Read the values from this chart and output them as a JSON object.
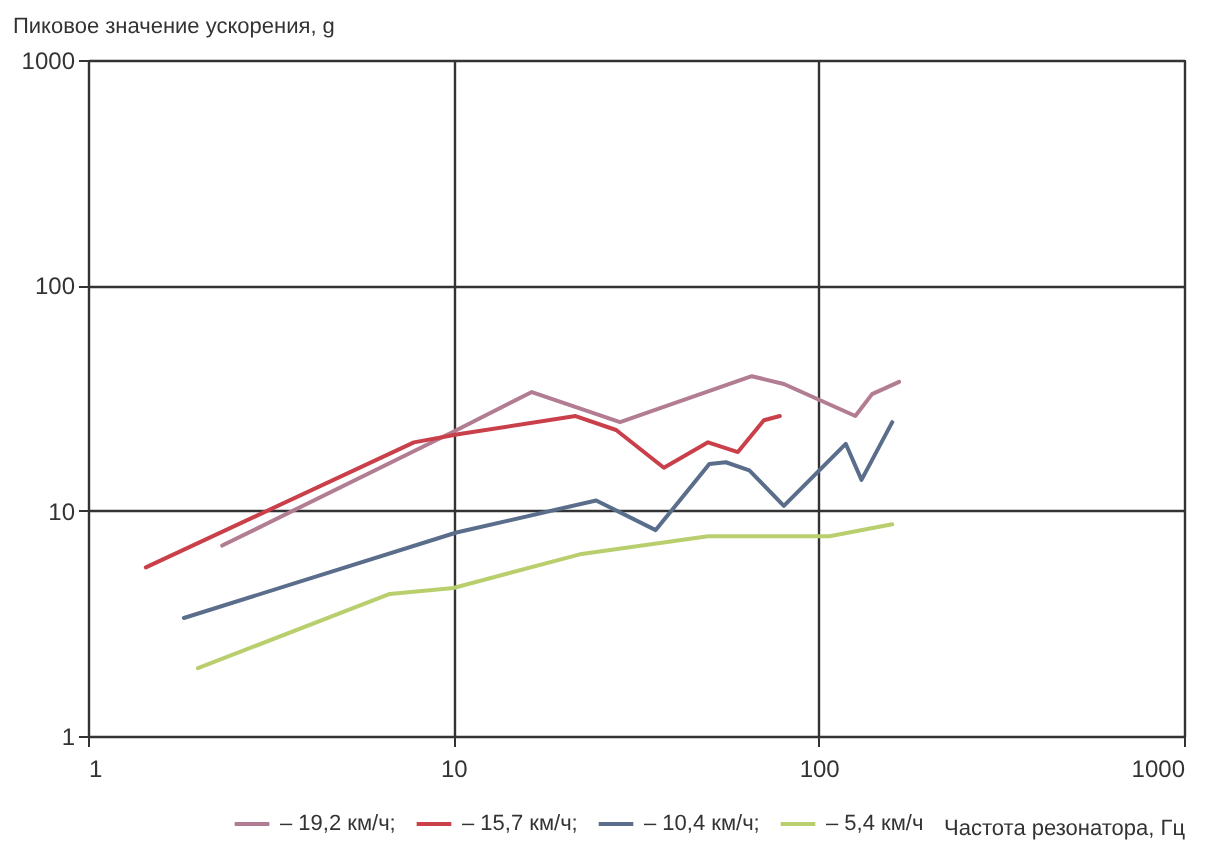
{
  "chart_data": {
    "type": "line",
    "xlabel": "Частота резонатора, Гц",
    "ylabel": "Пиковое значение ускорения, g",
    "log": "xy",
    "xlim": [
      1,
      1000
    ],
    "xticks": [
      1,
      10,
      100,
      1000
    ],
    "ylim": [
      1,
      1000
    ],
    "yticks": [
      1,
      10,
      100,
      1000
    ],
    "grid": true,
    "legend": "bottom",
    "marker": "none",
    "line_style": "solid",
    "series": [
      {
        "name": "– 19,2 км/ч;",
        "color": "#b27d92",
        "x": [
          2.33,
          10,
          16.4,
          28.6,
          65.6,
          80.3,
          126,
          140,
          166
        ],
        "values": [
          7,
          22.4,
          33.6,
          24.7,
          39.5,
          36.5,
          26.3,
          32.9,
          37.3
        ]
      },
      {
        "name": "– 15,7 км/ч;",
        "color": "#c9404a",
        "x": [
          1.44,
          7.8,
          10.4,
          21.6,
          27.9,
          37.7,
          49.8,
          60.1,
          70.8,
          78.3
        ],
        "values": [
          5.6,
          20.1,
          21.9,
          26.3,
          22.8,
          15.5,
          20.1,
          18.2,
          25.2,
          26.3
        ]
      },
      {
        "name": "– 10,4 км/ч;",
        "color": "#5a6e8c",
        "x": [
          1.83,
          10.2,
          24.6,
          35.8,
          50.2,
          55.7,
          64.6,
          80.3,
          118.6,
          131,
          159
        ],
        "values": [
          3.34,
          8,
          11.1,
          8.2,
          16.1,
          16.4,
          15.1,
          10.5,
          19.8,
          13.7,
          24.7
        ]
      },
      {
        "name": "– 5,4 км/ч",
        "color": "#b9cf6e",
        "x": [
          2,
          6.7,
          10,
          22.2,
          49.8,
          107,
          159
        ],
        "values": [
          2,
          4.27,
          4.54,
          6.4,
          7.7,
          7.7,
          8.7
        ]
      }
    ]
  }
}
